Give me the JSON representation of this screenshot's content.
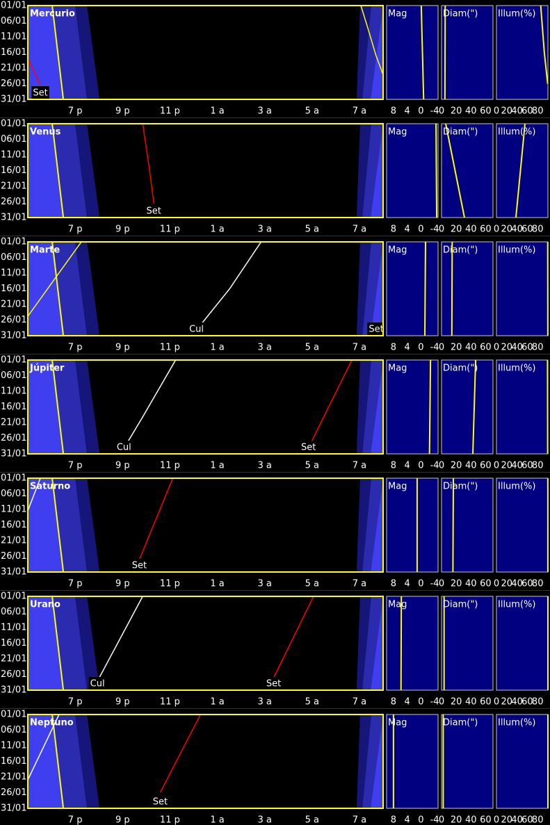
{
  "date_range": [
    1,
    31
  ],
  "date_ticks": [
    {
      "value": 1,
      "label": "01/01"
    },
    {
      "value": 6,
      "label": "06/01"
    },
    {
      "value": 11,
      "label": "11/01"
    },
    {
      "value": 16,
      "label": "16/01"
    },
    {
      "value": 21,
      "label": "21/01"
    },
    {
      "value": 26,
      "label": "26/01"
    },
    {
      "value": 31,
      "label": "31/01"
    }
  ],
  "time_range": [
    17,
    32
  ],
  "time_ticks": [
    {
      "value": 19,
      "label": "7 p"
    },
    {
      "value": 21,
      "label": "9 p"
    },
    {
      "value": 23,
      "label": "11 p"
    },
    {
      "value": 25,
      "label": "1 a"
    },
    {
      "value": 27,
      "label": "3 a"
    },
    {
      "value": 29,
      "label": "5 a"
    },
    {
      "value": 31,
      "label": "7 a"
    }
  ],
  "twilight": {
    "days": [
      1,
      31
    ],
    "bands": [
      {
        "color": "#3f3ff0",
        "from": [
          17,
          17
        ],
        "to": [
          18.03,
          18.5
        ]
      },
      {
        "color": "#2b2bb0",
        "from": [
          18.03,
          18.5
        ],
        "to": [
          19.0,
          19.5
        ]
      },
      {
        "color": "#16167a",
        "from": [
          19.0,
          19.5
        ],
        "to": [
          19.5,
          20.03
        ]
      },
      {
        "color": "#16167a",
        "from": [
          31.03,
          30.88
        ],
        "to": [
          31.5,
          31.12
        ]
      },
      {
        "color": "#2b2bb0",
        "from": [
          31.5,
          31.12
        ],
        "to": [
          32,
          31.47
        ]
      },
      {
        "color": "#3f3ff0",
        "from": [
          32,
          31.47
        ],
        "to": [
          32,
          32
        ]
      }
    ]
  },
  "sunset": {
    "color": "#ffff00",
    "x": [
      18.03,
      18.5
    ],
    "y": [
      1,
      31
    ]
  },
  "side_line_color": "#ffff00",
  "side_panels": [
    {
      "title": "Mag",
      "xlim": [
        10,
        -5
      ],
      "xticks": [
        8,
        4,
        0,
        -4
      ]
    },
    {
      "title": "Diam(\")",
      "xlim": [
        0,
        70
      ],
      "xticks": [
        0,
        20,
        40,
        60
      ]
    },
    {
      "title": "Illum(%)",
      "xlim": [
        0,
        100
      ],
      "xticks": [
        0,
        20,
        40,
        60,
        80
      ]
    }
  ],
  "planets": [
    {
      "name": "Mercurio",
      "lines": [
        {
          "color": "#ff0000",
          "label": "Set",
          "x": [
            17.0,
            17.53
          ],
          "y": [
            17.7,
            26.3
          ]
        },
        {
          "color": "#ffff00",
          "x": [
            31.06,
            31.35,
            31.7,
            32.03
          ],
          "y": [
            1,
            8.1,
            17,
            23.7
          ]
        }
      ],
      "side": [
        {
          "days": [
            1,
            31
          ],
          "values": [
            -0.1,
            -0.8
          ]
        },
        {
          "days": [
            1,
            31
          ],
          "values": [
            5.0,
            4.6
          ]
        },
        {
          "days": [
            1,
            16,
            26
          ],
          "values": [
            86,
            93,
            99.5
          ]
        }
      ]
    },
    {
      "name": "Venus",
      "lines": [
        {
          "color": "#ff0000",
          "label": "Set",
          "x": [
            21.85,
            22.12,
            22.32
          ],
          "y": [
            1,
            14.8,
            26.5
          ]
        }
      ],
      "side": [
        {
          "days": [
            1,
            31
          ],
          "values": [
            -4.4,
            -4.6
          ]
        },
        {
          "days": [
            1,
            31
          ],
          "values": [
            5.7,
            31.2
          ]
        },
        {
          "days": [
            1,
            31
          ],
          "values": [
            55.4,
            37.8
          ]
        }
      ]
    },
    {
      "name": "Marte",
      "lines": [
        {
          "color": "#ffff00",
          "x": [
            19.26,
            17.0
          ],
          "y": [
            1,
            24.8
          ]
        },
        {
          "color": "#ffffff",
          "label": "Cul",
          "x": [
            26.85,
            25.53,
            24.12
          ],
          "y": [
            1,
            15.9,
            29.2
          ]
        },
        {
          "color": "#ff0000",
          "label": "Set",
          "x": [
            32.0,
            31.75
          ],
          "y": [
            27,
            31
          ]
        }
      ],
      "side": [
        {
          "days": [
            1,
            31
          ],
          "values": [
            -1.35,
            -1.15
          ]
        },
        {
          "days": [
            1,
            31
          ],
          "values": [
            14.5,
            14.0
          ]
        },
        {
          "days": [
            1,
            31
          ],
          "values": [
            99.6,
            99.8
          ]
        }
      ]
    },
    {
      "name": "Júpiter",
      "lines": [
        {
          "color": "#ffffff",
          "label": "Cul",
          "x": [
            23.24,
            21.85,
            21.06
          ],
          "y": [
            1,
            19.2,
            29.2
          ]
        },
        {
          "color": "#ff0000",
          "label": "Set",
          "x": [
            30.68,
            28.85
          ],
          "y": [
            1,
            29
          ]
        }
      ],
      "side": [
        {
          "days": [
            1,
            31
          ],
          "values": [
            -2.8,
            -2.5
          ]
        },
        {
          "days": [
            1,
            31
          ],
          "values": [
            46.4,
            42.6
          ]
        },
        {
          "days": [
            1,
            31
          ],
          "values": [
            99.2,
            99.5
          ]
        }
      ]
    },
    {
      "name": "Saturno",
      "lines": [
        {
          "color": "#ffffff",
          "x": [
            17.53,
            17.0
          ],
          "y": [
            1,
            11.4
          ]
        },
        {
          "color": "#ff0000",
          "label": "Set",
          "x": [
            23.12,
            21.71
          ],
          "y": [
            1,
            27
          ]
        }
      ],
      "side": [
        {
          "days": [
            1,
            31
          ],
          "values": [
            1.1,
            1.1
          ]
        },
        {
          "days": [
            1,
            31
          ],
          "values": [
            16.1,
            15.5
          ]
        },
        {
          "days": [
            1,
            31
          ],
          "values": [
            99.8,
            99.9
          ]
        }
      ]
    },
    {
      "name": "Urano",
      "lines": [
        {
          "color": "#ffffff",
          "label": "Cul",
          "x": [
            21.85,
            19.94
          ],
          "y": [
            1,
            28.1
          ]
        },
        {
          "color": "#ff0000",
          "label": "Set",
          "x": [
            29.06,
            27.38
          ],
          "y": [
            1,
            27
          ]
        }
      ],
      "side": [
        {
          "days": [
            1,
            31
          ],
          "values": [
            5.7,
            5.8
          ]
        },
        {
          "days": [
            1,
            31
          ],
          "values": [
            3.5,
            3.5
          ]
        },
        {
          "days": [
            1,
            31
          ],
          "values": [
            100,
            100
          ]
        }
      ]
    },
    {
      "name": "Neptuno",
      "lines": [
        {
          "color": "#ffffff",
          "x": [
            18.32,
            17.0
          ],
          "y": [
            1,
            21.9
          ]
        },
        {
          "color": "#ff0000",
          "label": "Set",
          "x": [
            24.29,
            22.59
          ],
          "y": [
            1,
            25.9
          ]
        }
      ],
      "side": [
        {
          "days": [
            1,
            31
          ],
          "values": [
            8.0,
            8.0
          ]
        },
        {
          "days": [
            1,
            31
          ],
          "values": [
            2.3,
            2.3
          ]
        },
        {
          "days": [
            1,
            31
          ],
          "values": [
            100,
            100
          ]
        }
      ]
    }
  ]
}
